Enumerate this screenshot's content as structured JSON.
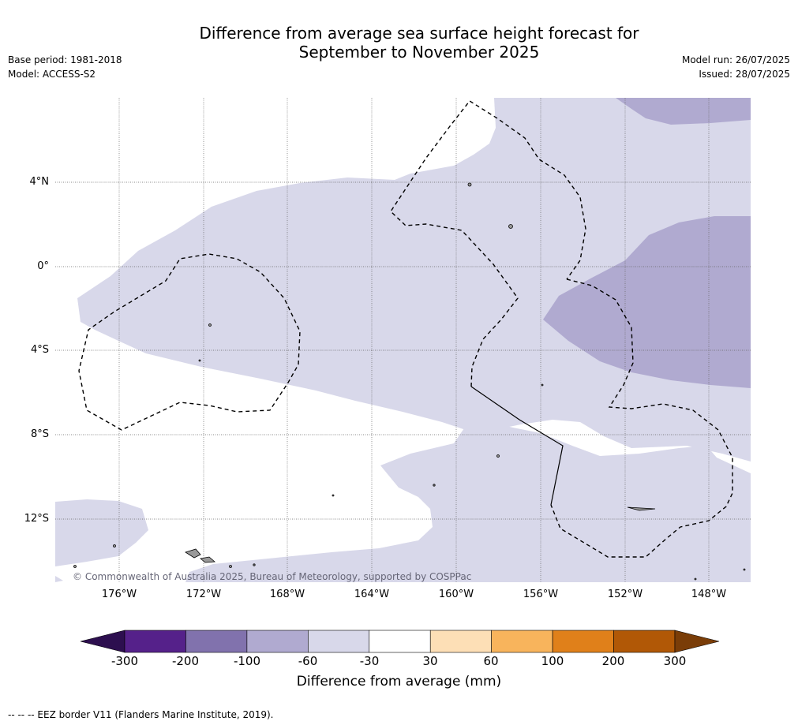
{
  "title": {
    "line1": "Difference from average sea surface height forecast for",
    "line2": "September to November 2025"
  },
  "meta_left": {
    "base_period": "Base period: 1981-2018",
    "model": "Model: ACCESS-S2"
  },
  "meta_right": {
    "model_run": "Model run: 26/07/2025",
    "issued": "Issued: 28/07/2025"
  },
  "map": {
    "lat_labels": [
      "4°N",
      "0°",
      "4°S",
      "8°S",
      "12°S"
    ],
    "lon_labels": [
      "176°W",
      "172°W",
      "168°W",
      "164°W",
      "160°W",
      "156°W",
      "152°W",
      "148°W"
    ],
    "copyright": "© Commonwealth of Australia 2025, Bureau of Meteorology, supported by COSPPac"
  },
  "colorbar": {
    "ticks": [
      "-300",
      "-200",
      "-100",
      "-60",
      "-30",
      "30",
      "60",
      "100",
      "200",
      "300"
    ],
    "colors": {
      "below": "#2d0f4f",
      "bins": [
        "#55218a",
        "#8172ad",
        "#b0aad0",
        "#d8d8ea",
        "#ffffff",
        "#fddfb6",
        "#f8b45c",
        "#e0801a",
        "#b15806"
      ],
      "above": "#7a3d08"
    },
    "label": "Difference from average (mm)"
  },
  "footer": "-- -- -- EEZ border V11 (Flanders Marine Institute, 2019)."
}
